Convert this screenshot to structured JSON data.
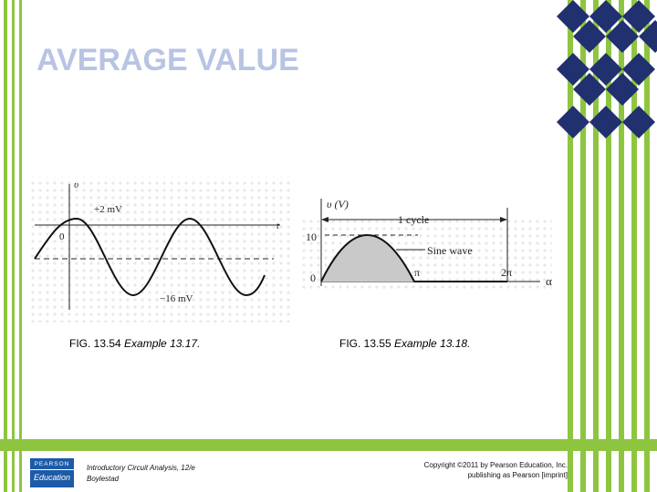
{
  "slide": {
    "title": "AVERAGE VALUE",
    "accent_green": "#8ec540",
    "accent_navy": "#21306e",
    "title_color": "#b8c4e3"
  },
  "fig54": {
    "axis_v": "υ",
    "axis_t": "t",
    "label_pos": "+2 mV",
    "label_neg": "−16 mV",
    "label_zero": "0",
    "caption_fig": "FIG. 13.54",
    "caption_text": "Example 13.17."
  },
  "fig55": {
    "axis_v": "υ (V)",
    "label_10": "10",
    "label_zero": "0",
    "label_cycle": "1 cycle",
    "label_sine": "Sine wave",
    "label_pi": "π",
    "label_2pi": "2π",
    "label_alpha": "α",
    "caption_fig": "FIG. 13.55",
    "caption_text": "Example 13.18."
  },
  "footer": {
    "book_line1": "Introductory Circuit Analysis, 12/e",
    "book_line2": "Boylestad",
    "copyright_line1": "Copyright ©2011 by Pearson Education, Inc.",
    "copyright_line2": "publishing as Pearson [imprint]",
    "logo_top": "PEARSON",
    "logo_bottom": "Education"
  }
}
